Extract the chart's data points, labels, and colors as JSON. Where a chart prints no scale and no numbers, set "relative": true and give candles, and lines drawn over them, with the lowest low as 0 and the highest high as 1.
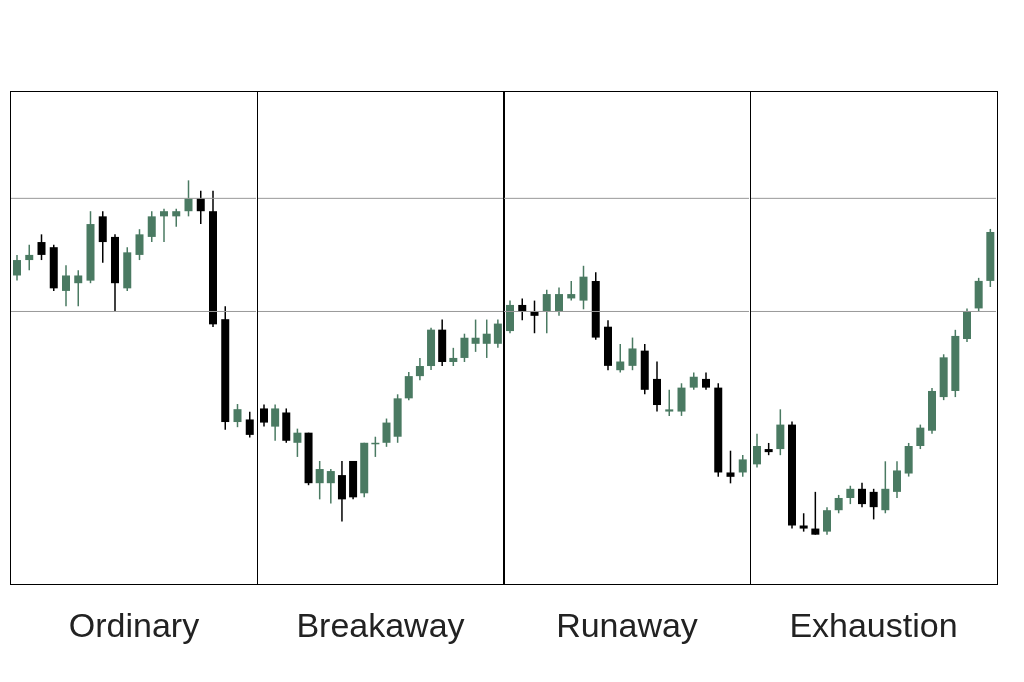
{
  "chart_data": [
    {
      "type": "candlestick",
      "relative": true,
      "xlabel": "Ordinary",
      "categories": [
        null,
        null,
        null,
        null,
        null,
        null,
        null,
        null,
        null,
        null,
        null,
        null,
        null,
        null,
        null,
        null,
        null,
        null,
        null,
        null
      ],
      "ohlc": [
        [
          0.63,
          0.71,
          0.61,
          0.69
        ],
        [
          0.69,
          0.75,
          0.65,
          0.71
        ],
        [
          0.76,
          0.79,
          0.69,
          0.71
        ],
        [
          0.74,
          0.75,
          0.57,
          0.58
        ],
        [
          0.57,
          0.67,
          0.51,
          0.63
        ],
        [
          0.6,
          0.65,
          0.51,
          0.63
        ],
        [
          0.61,
          0.88,
          0.6,
          0.83
        ],
        [
          0.86,
          0.88,
          0.68,
          0.76
        ],
        [
          0.78,
          0.79,
          0.49,
          0.6
        ],
        [
          0.58,
          0.74,
          0.57,
          0.72
        ],
        [
          0.71,
          0.81,
          0.69,
          0.79
        ],
        [
          0.78,
          0.88,
          0.76,
          0.86
        ],
        [
          0.86,
          0.89,
          0.76,
          0.88
        ],
        [
          0.86,
          0.89,
          0.82,
          0.88
        ],
        [
          0.88,
          1,
          0.86,
          0.93
        ],
        [
          0.93,
          0.96,
          0.83,
          0.88
        ],
        [
          0.88,
          0.96,
          0.43,
          0.44
        ],
        [
          0.46,
          0.51,
          0.03,
          0.06
        ],
        [
          0.06,
          0.13,
          0.04,
          0.11
        ],
        [
          0.07,
          0.1,
          0,
          0.01
        ]
      ],
      "colors": [
        "#4a7a62",
        "#4a7a62",
        "#000000",
        "#000000",
        "#4a7a62",
        "#4a7a62",
        "#4a7a62",
        "#000000",
        "#000000",
        "#4a7a62",
        "#4a7a62",
        "#4a7a62",
        "#4a7a62",
        "#4a7a62",
        "#4a7a62",
        "#000000",
        "#000000",
        "#000000",
        "#4a7a62",
        "#000000"
      ],
      "ref_lines": [
        {
          "axis": "y",
          "value": 0.93,
          "color": "#999999"
        },
        {
          "axis": "y",
          "value": 0.49,
          "color": "#999999"
        }
      ]
    },
    {
      "type": "candlestick",
      "relative": true,
      "xlabel": "Breakaway",
      "categories": [
        null,
        null,
        null,
        null,
        null,
        null,
        null,
        null,
        null,
        null,
        null,
        null,
        null,
        null,
        null,
        null,
        null,
        null,
        null,
        null,
        null,
        null
      ],
      "ohlc": [
        [
          0.56,
          0.58,
          0.47,
          0.49
        ],
        [
          0.47,
          0.58,
          0.4,
          0.56
        ],
        [
          0.54,
          0.56,
          0.39,
          0.4
        ],
        [
          0.39,
          0.46,
          0.32,
          0.44
        ],
        [
          0.44,
          0.44,
          0.18,
          0.19
        ],
        [
          0.19,
          0.3,
          0.11,
          0.26
        ],
        [
          0.19,
          0.26,
          0.09,
          0.25
        ],
        [
          0.23,
          0.3,
          0,
          0.11
        ],
        [
          0.3,
          0.3,
          0.11,
          0.12
        ],
        [
          0.14,
          0.39,
          0.12,
          0.39
        ],
        [
          0.39,
          0.42,
          0.32,
          0.39
        ],
        [
          0.39,
          0.51,
          0.37,
          0.49
        ],
        [
          0.42,
          0.63,
          0.39,
          0.61
        ],
        [
          0.61,
          0.74,
          0.6,
          0.72
        ],
        [
          0.72,
          0.81,
          0.7,
          0.77
        ],
        [
          0.77,
          0.96,
          0.75,
          0.95
        ],
        [
          0.95,
          1,
          0.77,
          0.79
        ],
        [
          0.79,
          0.86,
          0.77,
          0.81
        ],
        [
          0.81,
          0.93,
          0.79,
          0.91
        ],
        [
          0.88,
          1,
          0.84,
          0.91
        ],
        [
          0.88,
          1,
          0.81,
          0.93
        ],
        [
          0.88,
          1,
          0.86,
          0.98
        ]
      ],
      "colors": [
        "#000000",
        "#4a7a62",
        "#000000",
        "#4a7a62",
        "#000000",
        "#4a7a62",
        "#4a7a62",
        "#000000",
        "#000000",
        "#4a7a62",
        "#4a7a62",
        "#4a7a62",
        "#4a7a62",
        "#4a7a62",
        "#4a7a62",
        "#4a7a62",
        "#000000",
        "#4a7a62",
        "#4a7a62",
        "#4a7a62",
        "#4a7a62",
        "#4a7a62"
      ],
      "ref_lines": [
        {
          "axis": "y",
          "value": 1.6,
          "color": "#999999"
        },
        {
          "axis": "y",
          "value": 1.04,
          "color": "#999999"
        }
      ]
    },
    {
      "type": "candlestick",
      "relative": true,
      "xlabel": "Runaway",
      "categories": [
        null,
        null,
        null,
        null,
        null,
        null,
        null,
        null,
        null,
        null,
        null,
        null,
        null,
        null,
        null,
        null,
        null,
        null,
        null,
        null
      ],
      "ohlc": [
        [
          0.7,
          0.84,
          0.69,
          0.82
        ],
        [
          0.82,
          0.85,
          0.75,
          0.79
        ],
        [
          0.79,
          0.84,
          0.69,
          0.77
        ],
        [
          0.79,
          0.89,
          0.69,
          0.87
        ],
        [
          0.79,
          0.9,
          0.77,
          0.87
        ],
        [
          0.85,
          0.93,
          0.84,
          0.87
        ],
        [
          0.84,
          1,
          0.8,
          0.95
        ],
        [
          0.93,
          0.97,
          0.66,
          0.67
        ],
        [
          0.72,
          0.75,
          0.52,
          0.54
        ],
        [
          0.52,
          0.64,
          0.51,
          0.56
        ],
        [
          0.54,
          0.67,
          0.52,
          0.62
        ],
        [
          0.61,
          0.64,
          0.41,
          0.43
        ],
        [
          0.48,
          0.56,
          0.33,
          0.36
        ],
        [
          0.33,
          0.43,
          0.31,
          0.34
        ],
        [
          0.33,
          0.46,
          0.31,
          0.44
        ],
        [
          0.44,
          0.51,
          0.43,
          0.49
        ],
        [
          0.48,
          0.51,
          0.43,
          0.44
        ],
        [
          0.44,
          0.46,
          0.03,
          0.05
        ],
        [
          0.05,
          0.15,
          0,
          0.03
        ],
        [
          0.05,
          0.13,
          0.03,
          0.11
        ]
      ],
      "colors": [
        "#4a7a62",
        "#000000",
        "#000000",
        "#4a7a62",
        "#4a7a62",
        "#4a7a62",
        "#4a7a62",
        "#000000",
        "#000000",
        "#4a7a62",
        "#4a7a62",
        "#000000",
        "#000000",
        "#4a7a62",
        "#4a7a62",
        "#4a7a62",
        "#000000",
        "#000000",
        "#000000",
        "#4a7a62"
      ],
      "ref_lines": [
        {
          "axis": "y",
          "value": 1.31,
          "color": "#999999"
        },
        {
          "axis": "y",
          "value": 0.79,
          "color": "#999999"
        }
      ]
    },
    {
      "type": "candlestick",
      "relative": true,
      "xlabel": "Exhaustion",
      "categories": [
        null,
        null,
        null,
        null,
        null,
        null,
        null,
        null,
        null,
        null,
        null,
        null,
        null,
        null,
        null,
        null,
        null,
        null,
        null,
        null,
        null
      ],
      "ohlc": [
        [
          0.23,
          0.33,
          0.22,
          0.29
        ],
        [
          0.28,
          0.3,
          0.26,
          0.27
        ],
        [
          0.28,
          0.41,
          0.26,
          0.36
        ],
        [
          0.36,
          0.37,
          0.02,
          0.03
        ],
        [
          0.03,
          0.07,
          0.01,
          0.02
        ],
        [
          0.02,
          0.14,
          0,
          0
        ],
        [
          0.01,
          0.09,
          0,
          0.08
        ],
        [
          0.08,
          0.13,
          0.07,
          0.12
        ],
        [
          0.12,
          0.16,
          0.1,
          0.15
        ],
        [
          0.15,
          0.17,
          0.09,
          0.1
        ],
        [
          0.14,
          0.15,
          0.05,
          0.09
        ],
        [
          0.08,
          0.24,
          0.07,
          0.15
        ],
        [
          0.14,
          0.24,
          0.12,
          0.21
        ],
        [
          0.2,
          0.3,
          0.19,
          0.29
        ],
        [
          0.29,
          0.36,
          0.28,
          0.35
        ],
        [
          0.34,
          0.48,
          0.33,
          0.47
        ],
        [
          0.45,
          0.59,
          0.44,
          0.58
        ],
        [
          0.47,
          0.67,
          0.45,
          0.65
        ],
        [
          0.64,
          0.74,
          0.63,
          0.73
        ],
        [
          0.74,
          0.84,
          0.73,
          0.83
        ],
        [
          0.83,
          1,
          0.81,
          0.99
        ]
      ],
      "colors": [
        "#4a7a62",
        "#000000",
        "#4a7a62",
        "#000000",
        "#000000",
        "#000000",
        "#4a7a62",
        "#4a7a62",
        "#4a7a62",
        "#000000",
        "#000000",
        "#4a7a62",
        "#4a7a62",
        "#4a7a62",
        "#4a7a62",
        "#4a7a62",
        "#4a7a62",
        "#4a7a62",
        "#4a7a62",
        "#4a7a62",
        "#4a7a62"
      ],
      "ref_lines": [
        {
          "axis": "y",
          "value": 1.1,
          "color": "#999999"
        },
        {
          "axis": "y",
          "value": 0.73,
          "color": "#999999"
        }
      ]
    }
  ]
}
